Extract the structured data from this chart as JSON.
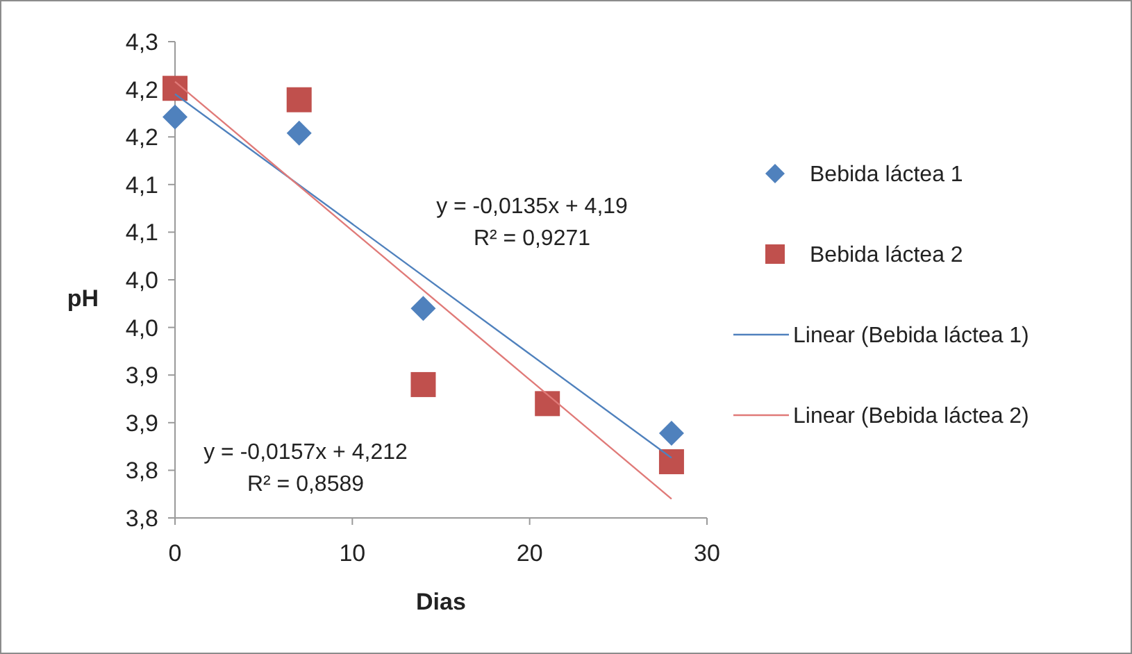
{
  "chart_data": {
    "type": "scatter",
    "xlabel": "Dias",
    "ylabel": "pH",
    "xlim": [
      0,
      30
    ],
    "xticks": [
      0,
      10,
      20,
      30
    ],
    "ylim": [
      3.8,
      4.3
    ],
    "yticks": [
      {
        "value": 3.8,
        "label": "3,8"
      },
      {
        "value": 3.85,
        "label": "3,8"
      },
      {
        "value": 3.9,
        "label": "3,9"
      },
      {
        "value": 3.95,
        "label": "3,9"
      },
      {
        "value": 4.0,
        "label": "4,0"
      },
      {
        "value": 4.05,
        "label": "4,0"
      },
      {
        "value": 4.1,
        "label": "4,1"
      },
      {
        "value": 4.15,
        "label": "4,1"
      },
      {
        "value": 4.2,
        "label": "4,2"
      },
      {
        "value": 4.25,
        "label": "4,2"
      },
      {
        "value": 4.3,
        "label": "4,3"
      }
    ],
    "grid": false,
    "legend": "right",
    "series": [
      {
        "name": "Bebida láctea 1",
        "marker": "diamond",
        "color": "#4f81bd",
        "x": [
          0,
          7,
          14,
          28
        ],
        "values": [
          4.221,
          4.204,
          4.02,
          3.889
        ]
      },
      {
        "name": "Bebida láctea 2",
        "marker": "square",
        "color": "#c0504d",
        "x": [
          0,
          7,
          14,
          21,
          28
        ],
        "values": [
          4.251,
          4.239,
          3.94,
          3.92,
          3.859
        ]
      },
      {
        "name": "Linear (Bebida láctea 1)",
        "type": "line",
        "marker": "none",
        "color": "#4f81bd",
        "x": [
          0,
          28
        ],
        "values": [
          4.245,
          3.863
        ]
      },
      {
        "name": "Linear (Bebida láctea 2)",
        "type": "line",
        "marker": "none",
        "color": "#e07a78",
        "x": [
          0,
          28
        ],
        "values": [
          4.258,
          3.82
        ]
      }
    ],
    "annotations": [
      "y = -0,0135x + 4,19",
      "R² = 0,9271",
      "y = -0,0157x + 4,212",
      "R² = 0,8589"
    ]
  }
}
